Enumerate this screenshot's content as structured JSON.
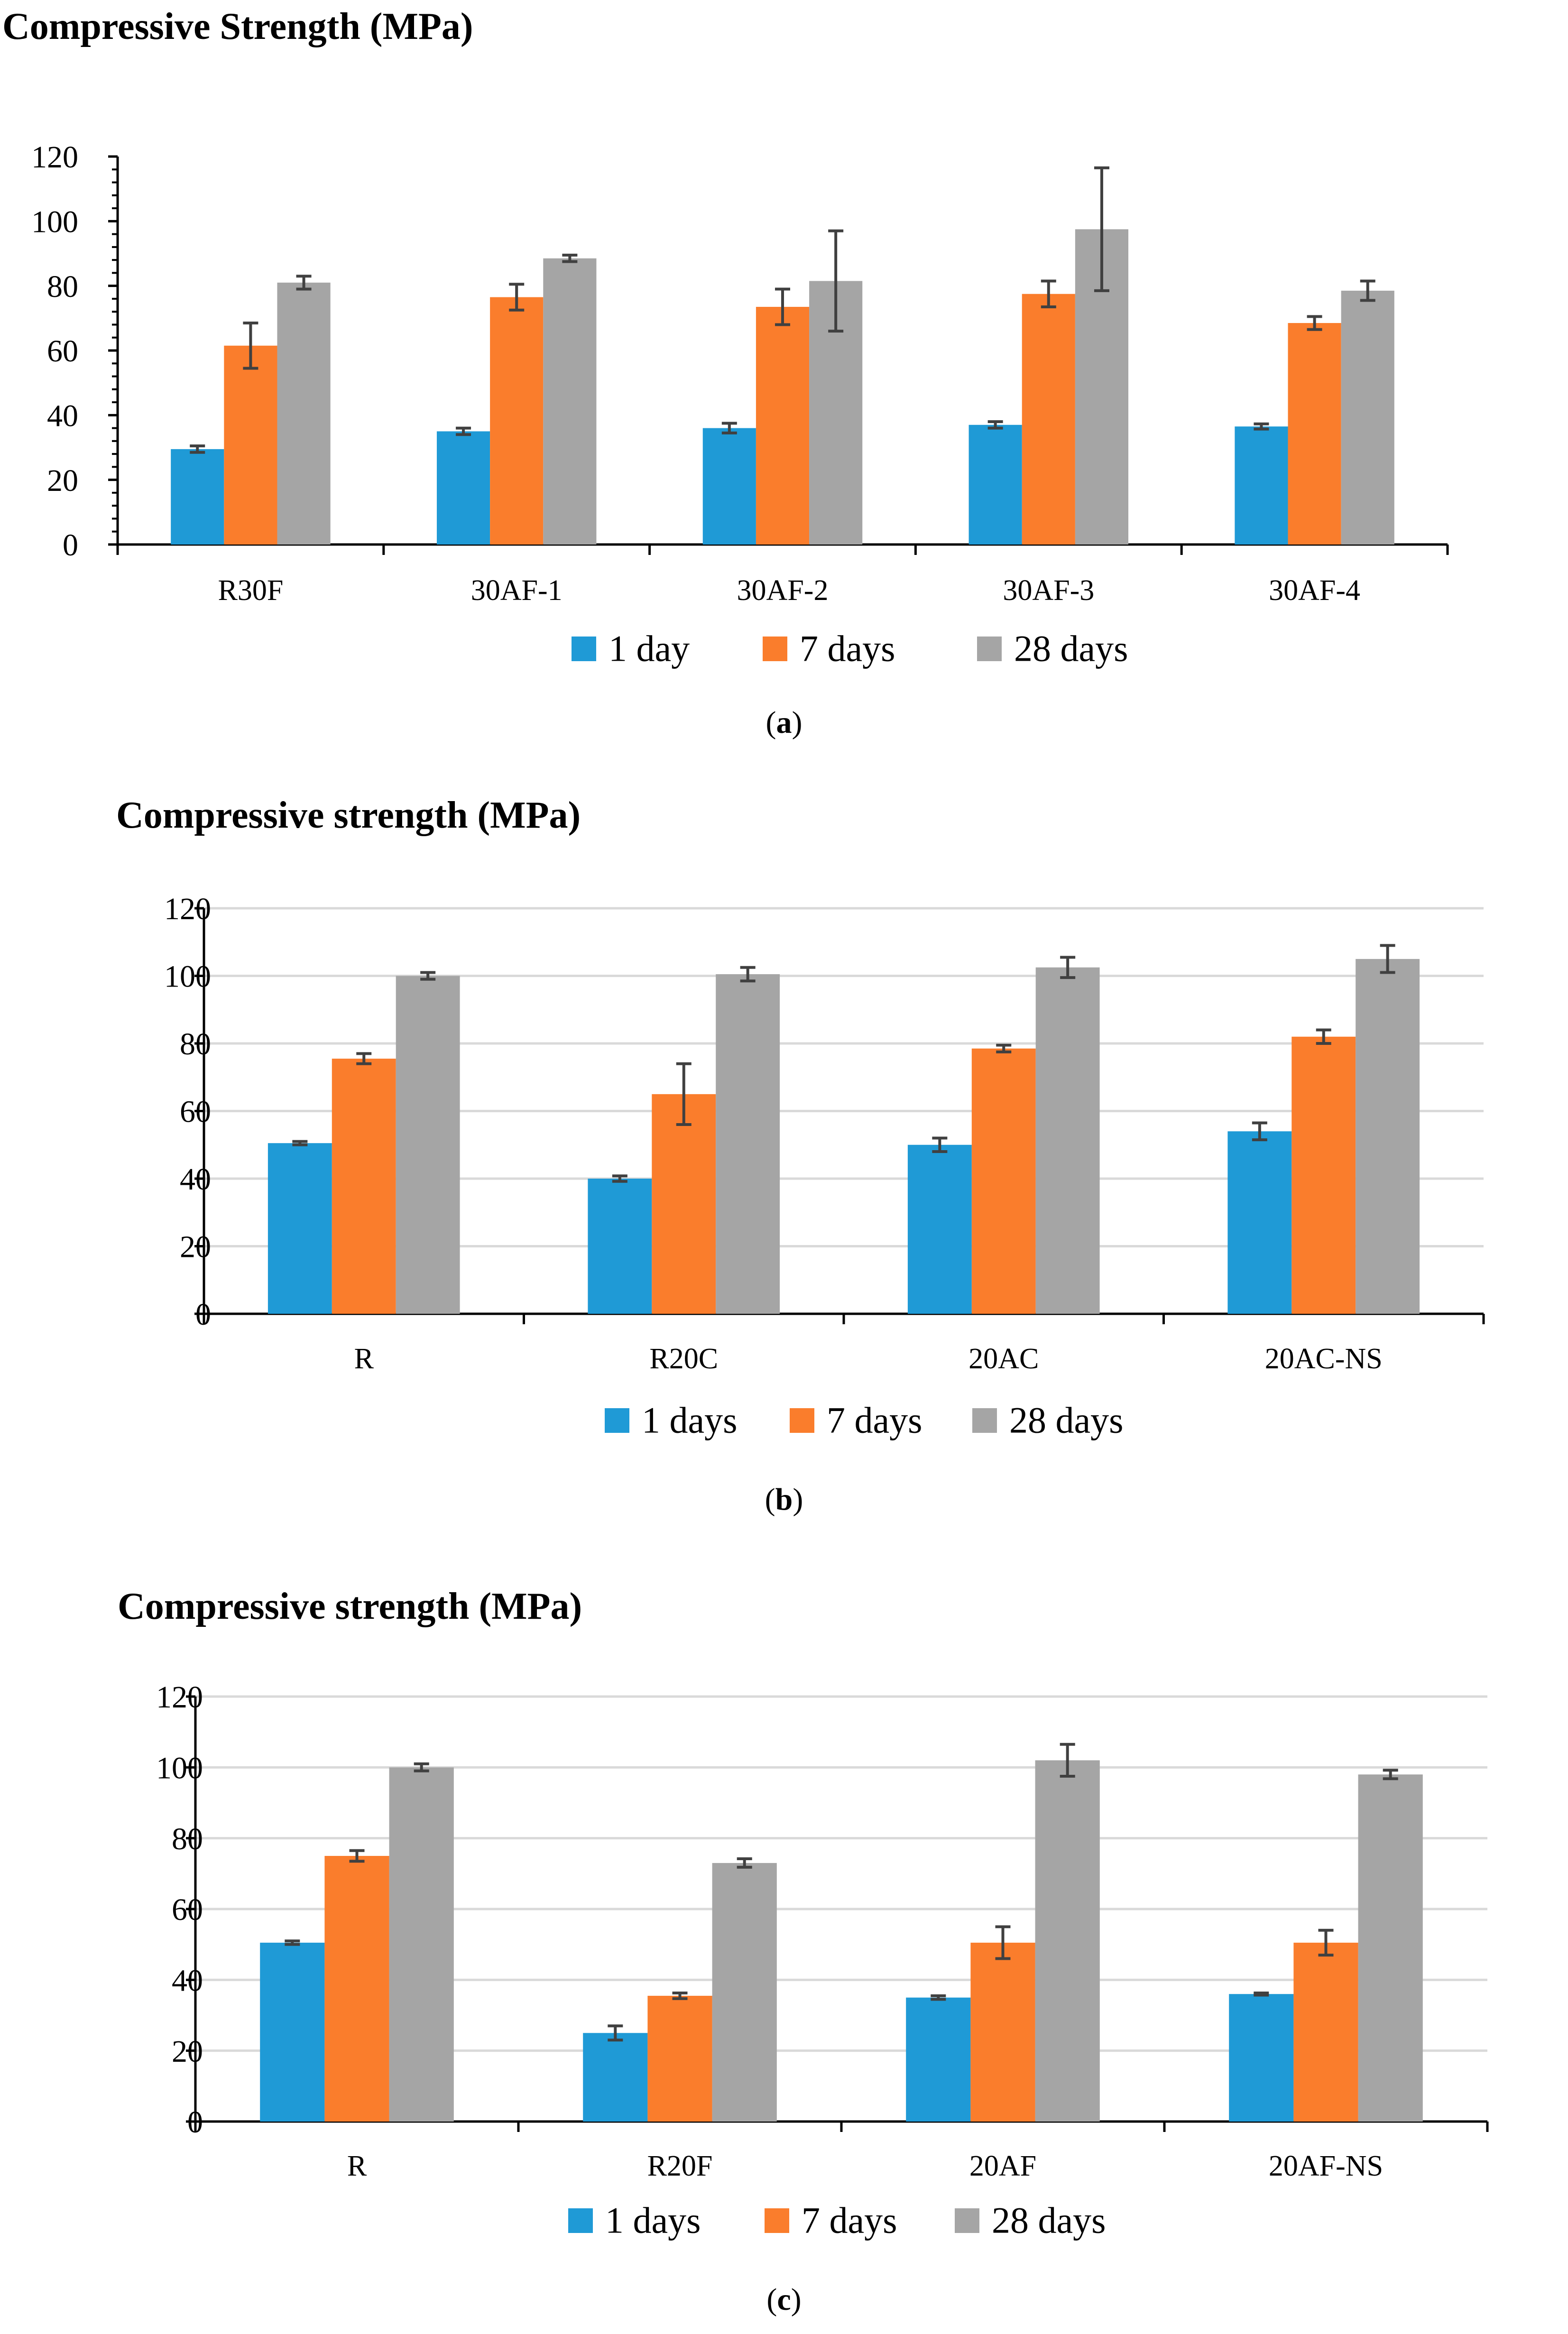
{
  "colors": {
    "series_1": "#1f9ad6",
    "series_7": "#fa7d2c",
    "series_28": "#a5a5a5",
    "grid": "#d9d9d9",
    "axis": "#000000",
    "errorbar": "#404040"
  },
  "chart_data": [
    {
      "id": "a",
      "type": "bar",
      "title": "Compressive Strength (MPa)",
      "caption_letter": "a",
      "xlabel": "",
      "ylabel": "",
      "ylim": [
        0,
        120
      ],
      "yticks": [
        0,
        20,
        40,
        60,
        80,
        100,
        120
      ],
      "yticklabels": [
        "0",
        "20",
        "40",
        "60",
        "80",
        "100",
        "120"
      ],
      "grid": false,
      "minor_ticks": true,
      "legend_position": "bottom-center",
      "categories": [
        "R30F",
        "30AF-1",
        "30AF-2",
        "30AF-3",
        "30AF-4"
      ],
      "series": [
        {
          "name": "1 day",
          "values": [
            29.5,
            35,
            36,
            37,
            36.5
          ],
          "errors": [
            1,
            1,
            1.5,
            1,
            0.8
          ]
        },
        {
          "name": "7 days",
          "values": [
            61.5,
            76.5,
            73.5,
            77.5,
            68.5
          ],
          "errors": [
            7,
            4,
            5.5,
            4,
            2
          ]
        },
        {
          "name": "28 days",
          "values": [
            81,
            88.5,
            81.5,
            97.5,
            78.5
          ],
          "errors": [
            2,
            1,
            15.5,
            19,
            3
          ]
        }
      ]
    },
    {
      "id": "b",
      "type": "bar",
      "title": "Compressive strength (MPa)",
      "caption_letter": "b",
      "xlabel": "",
      "ylabel": "",
      "ylim": [
        0,
        120
      ],
      "yticks": [
        0,
        20,
        40,
        60,
        80,
        100,
        120
      ],
      "yticklabels": [
        "0",
        "20",
        "40",
        "60",
        "80",
        "100",
        "120"
      ],
      "grid": true,
      "minor_ticks": false,
      "legend_position": "bottom-center",
      "categories": [
        "R",
        "R20C",
        "20AC",
        "20AC-NS"
      ],
      "series": [
        {
          "name": "1 days",
          "values": [
            50.5,
            40,
            50,
            54
          ],
          "errors": [
            0.5,
            0.8,
            2,
            2.5
          ]
        },
        {
          "name": "7 days",
          "values": [
            75.5,
            65,
            78.5,
            82
          ],
          "errors": [
            1.5,
            9,
            1,
            2
          ]
        },
        {
          "name": "28 days",
          "values": [
            100,
            100.5,
            102.5,
            105
          ],
          "errors": [
            1,
            2,
            3,
            4
          ]
        }
      ]
    },
    {
      "id": "c",
      "type": "bar",
      "title": "Compressive strength (MPa)",
      "caption_letter": "c",
      "xlabel": "",
      "ylabel": "",
      "ylim": [
        0,
        120
      ],
      "yticks": [
        0,
        20,
        40,
        60,
        80,
        100,
        120
      ],
      "yticklabels": [
        "0",
        "20",
        "40",
        "60",
        "80",
        "100",
        "120"
      ],
      "grid": true,
      "minor_ticks": false,
      "legend_position": "bottom-center",
      "categories": [
        "R",
        "R20F",
        "20AF",
        "20AF-NS"
      ],
      "series": [
        {
          "name": "1 days",
          "values": [
            50.5,
            25,
            35,
            36
          ],
          "errors": [
            0.5,
            2,
            0.5,
            0.3
          ]
        },
        {
          "name": "7 days",
          "values": [
            75,
            35.5,
            50.5,
            50.5
          ],
          "errors": [
            1.5,
            0.8,
            4.5,
            3.5
          ]
        },
        {
          "name": "28 days",
          "values": [
            100,
            73,
            102,
            98
          ],
          "errors": [
            1,
            1.2,
            4.5,
            1.2
          ]
        }
      ]
    }
  ]
}
